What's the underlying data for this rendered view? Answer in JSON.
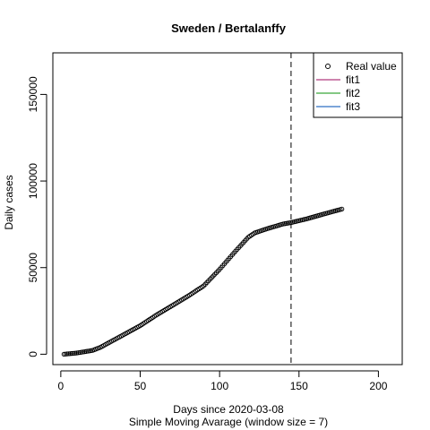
{
  "chart_data": {
    "type": "scatter",
    "title": "Sweden / Bertalanffy",
    "xlabel": "Days since 2020-03-08",
    "xlabel_sub": "Simple Moving Avarage (window size = 7)",
    "ylabel": "Daily cases",
    "xlim": [
      -5,
      215
    ],
    "ylim": [
      -6000,
      174000
    ],
    "x_ticks": [
      0,
      50,
      100,
      150,
      200
    ],
    "y_ticks": [
      0,
      50000,
      100000,
      150000
    ],
    "x_tick_labels": [
      "0",
      "50",
      "100",
      "150",
      "200"
    ],
    "y_tick_labels": [
      "0",
      "50000",
      "100000",
      "150000"
    ],
    "vline_x": 145,
    "legend_position": "top-right",
    "legend": [
      {
        "name": "Real value",
        "kind": "point",
        "color": "#000000"
      },
      {
        "name": "fit1",
        "kind": "line",
        "color": "#b03a7e"
      },
      {
        "name": "fit2",
        "kind": "line",
        "color": "#3aa83a"
      },
      {
        "name": "fit3",
        "kind": "line",
        "color": "#2f6fc4"
      }
    ],
    "series": [
      {
        "name": "Real value",
        "x_start": 2,
        "x_end": 177,
        "anchors_x": [
          2,
          10,
          20,
          25,
          30,
          40,
          50,
          60,
          70,
          80,
          90,
          100,
          110,
          118,
          122,
          130,
          140,
          145,
          155,
          165,
          177
        ],
        "anchors_y": [
          0,
          700,
          2200,
          4000,
          6500,
          11500,
          16500,
          22500,
          28000,
          33500,
          39500,
          49000,
          59500,
          67500,
          70000,
          72500,
          75200,
          76000,
          78200,
          80800,
          83800
        ]
      }
    ]
  }
}
